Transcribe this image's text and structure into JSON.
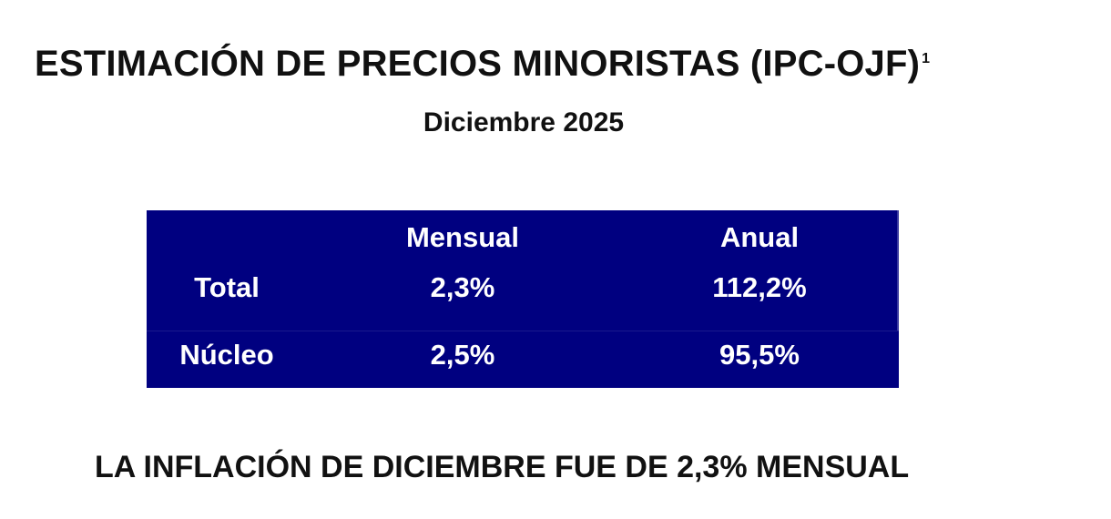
{
  "header": {
    "title": "ESTIMACIÓN DE PRECIOS MINORISTAS (IPC-OJF)",
    "footnote_mark": "1",
    "subtitle": "Diciembre 2025"
  },
  "table": {
    "columns": [
      "",
      "Mensual",
      "Anual"
    ],
    "rows": [
      {
        "label": "Total",
        "mensual": "2,3%",
        "anual": "112,2%"
      },
      {
        "label": "Núcleo",
        "mensual": "2,5%",
        "anual": "95,5%"
      }
    ],
    "colors": {
      "background": "#000080",
      "text": "#ffffff"
    }
  },
  "footer": {
    "text": "LA INFLACIÓN DE DICIEMBRE FUE DE 2,3% MENSUAL"
  }
}
